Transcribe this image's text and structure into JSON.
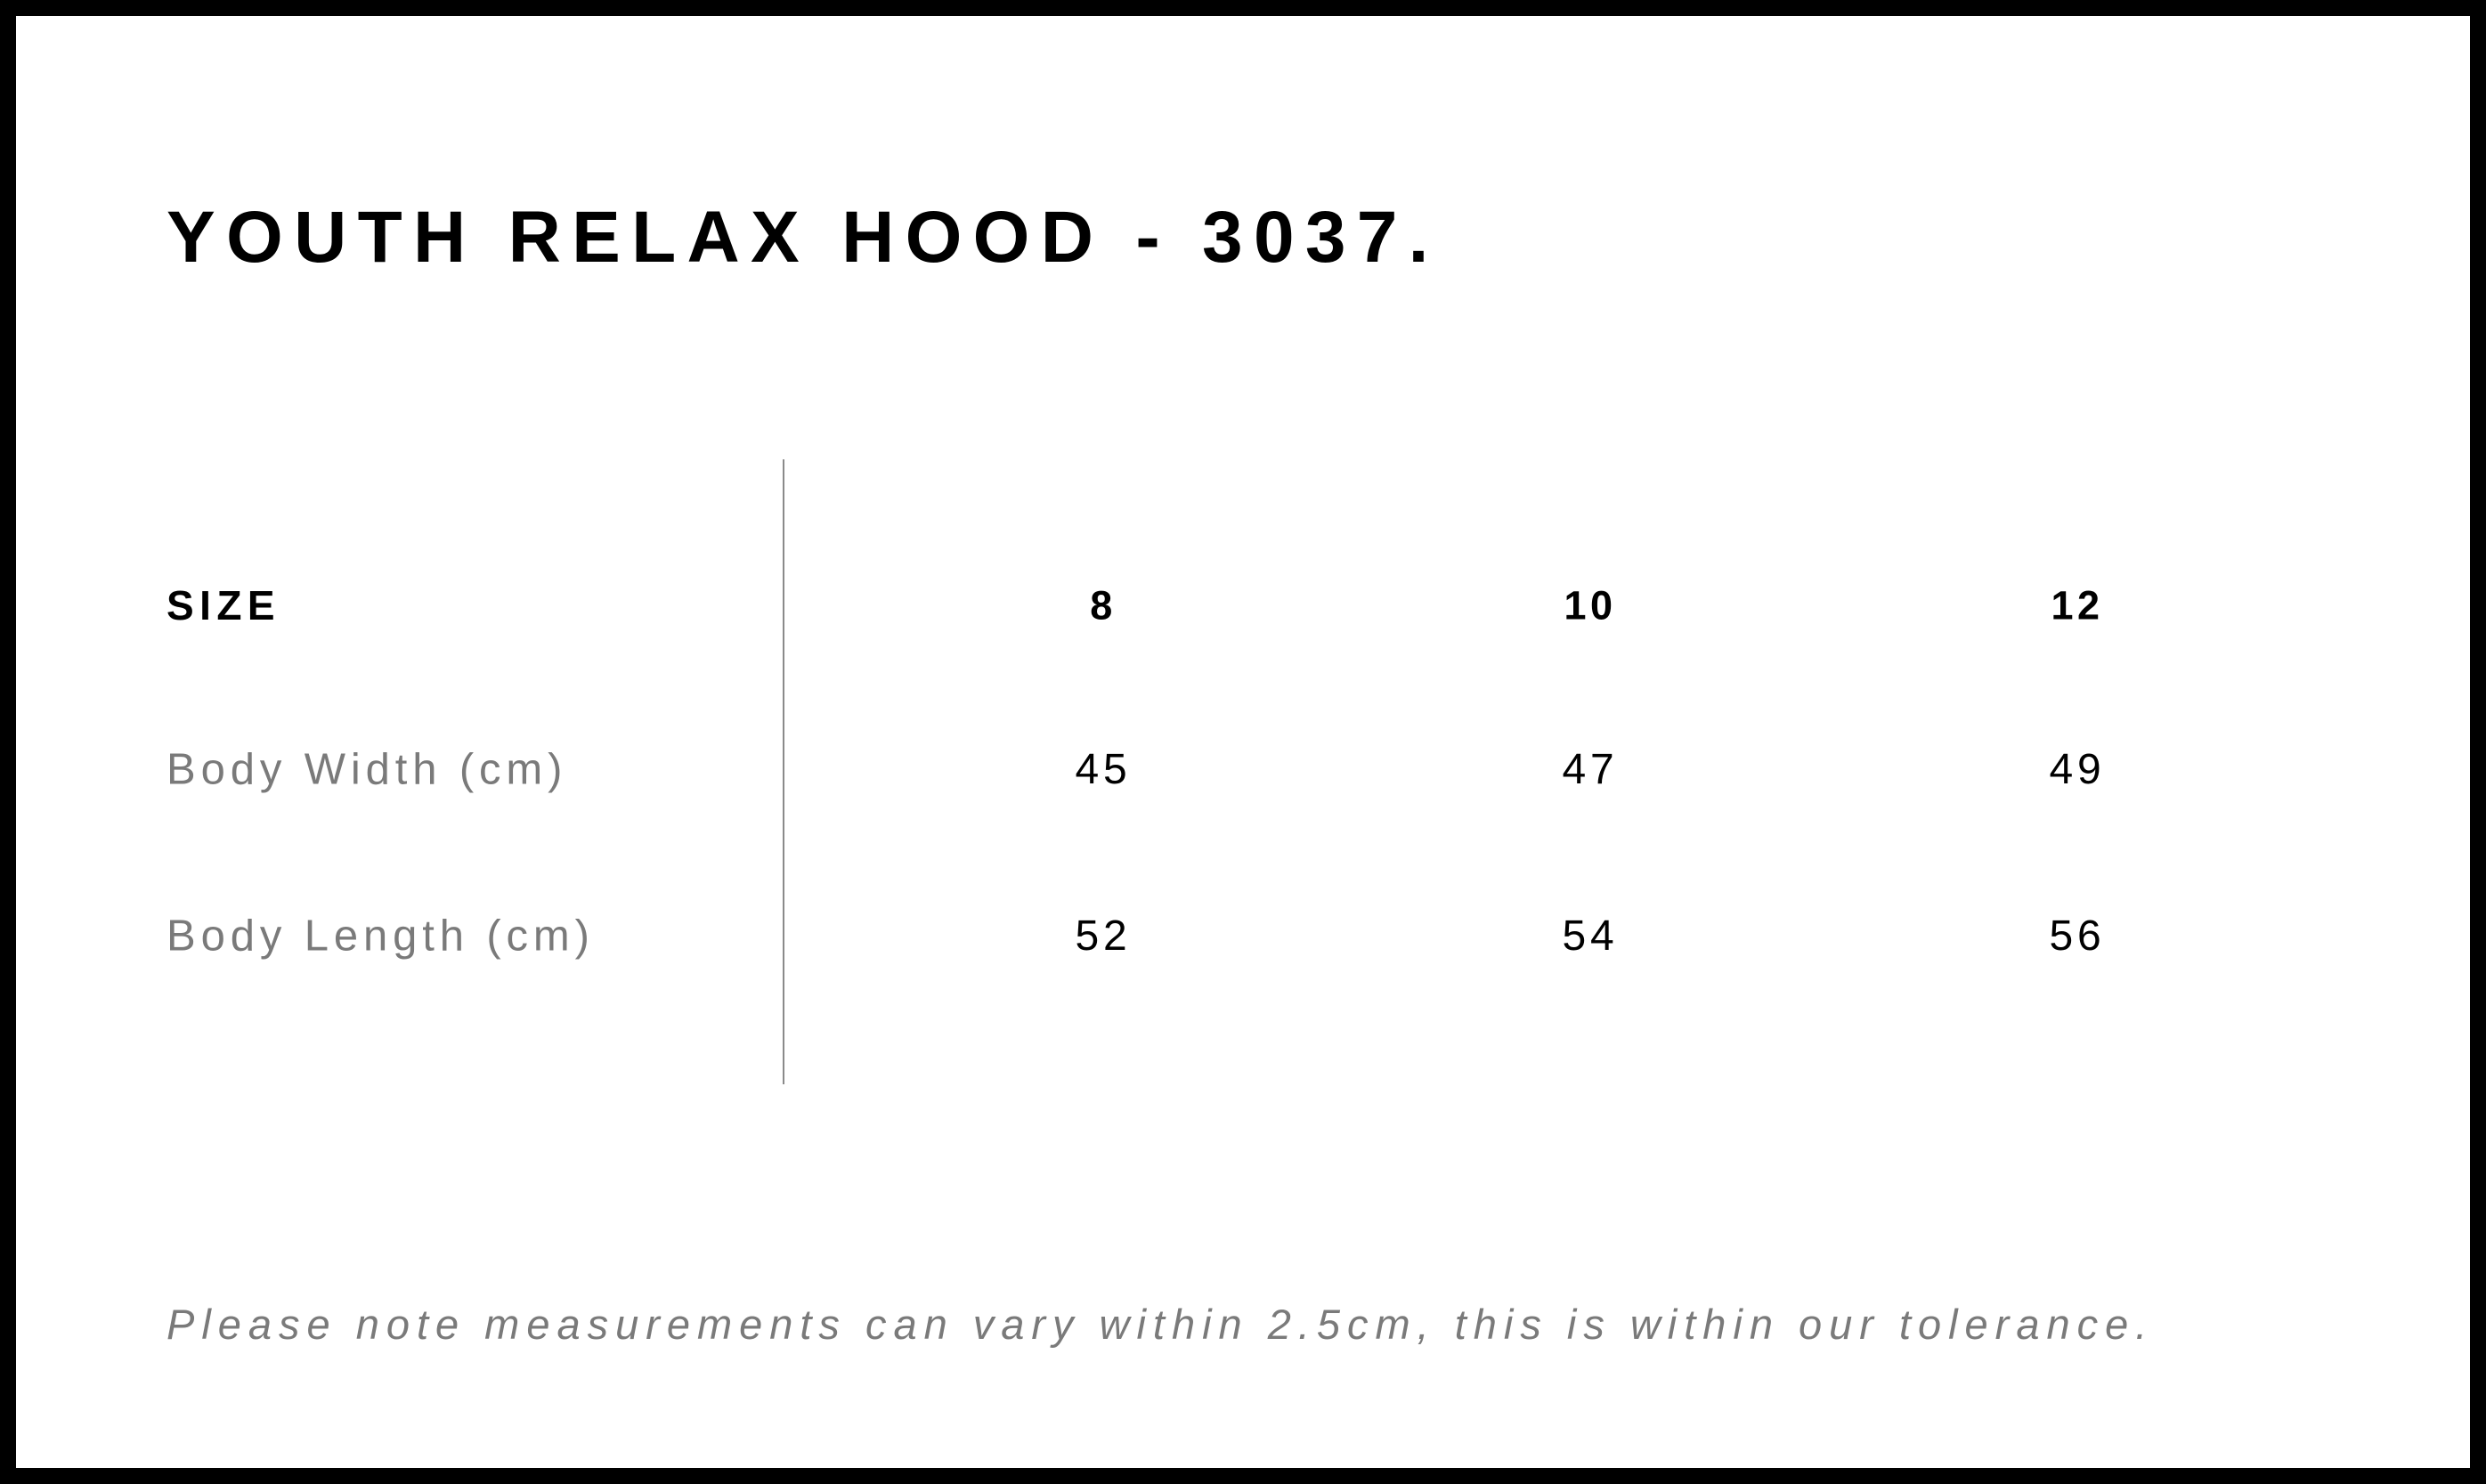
{
  "title": "YOUTH RELAX HOOD - 3037.",
  "table": {
    "header": {
      "label": "SIZE",
      "sizes": [
        "8",
        "10",
        "12"
      ]
    },
    "rows": [
      {
        "label": "Body Width (cm)",
        "values": [
          "45",
          "47",
          "49"
        ]
      },
      {
        "label": "Body Length (cm)",
        "values": [
          "52",
          "54",
          "56"
        ]
      }
    ]
  },
  "note": "Please note measurements can vary within 2.5cm, this is within our tolerance.",
  "colors": {
    "border": "#000000",
    "label_gray": "#7a7a7a",
    "divider": "#8a8a8a"
  }
}
